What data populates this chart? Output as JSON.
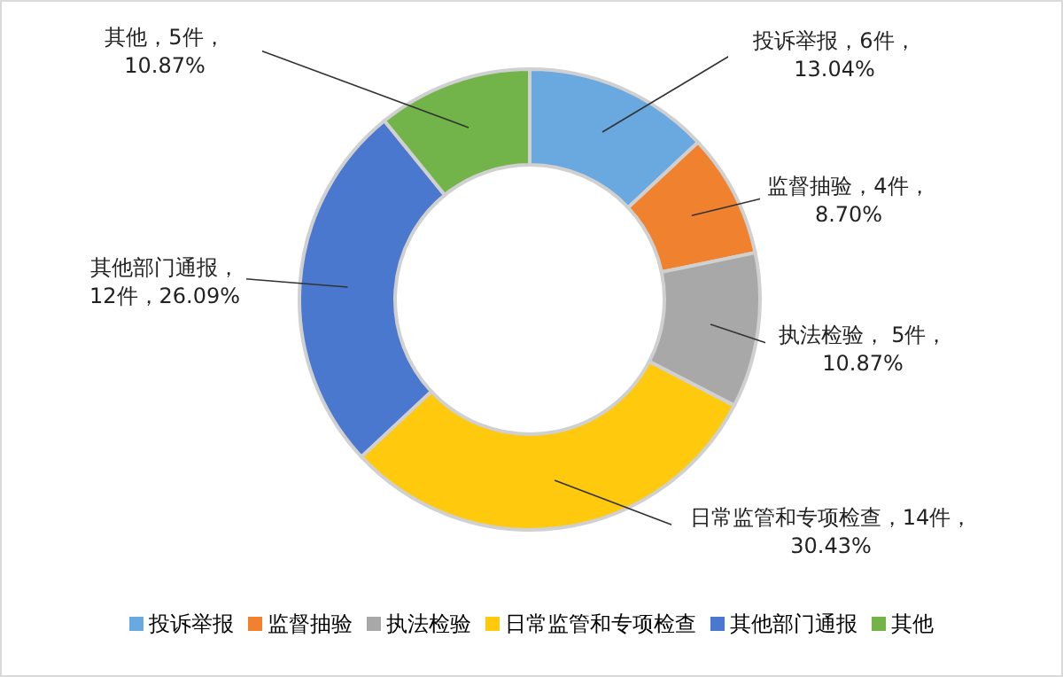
{
  "chart_data": {
    "type": "donut",
    "categories": [
      "投诉举报",
      "监督抽验",
      "执法检验",
      "日常监管和专项检查",
      "其他部门通报",
      "其他"
    ],
    "values": [
      6,
      4,
      5,
      14,
      12,
      5
    ],
    "value_labels": [
      "，6件，13.04%",
      "，4件，8.70%",
      "， 5件，10.87%",
      "，14件，30.43%",
      "，12件，26.09%",
      "，5件，10.87%"
    ],
    "colors": [
      "#6aa8e0",
      "#f0812f",
      "#a8a8a8",
      "#ffc90e",
      "#4a78cf",
      "#72b34a"
    ],
    "legend": "bottom"
  }
}
